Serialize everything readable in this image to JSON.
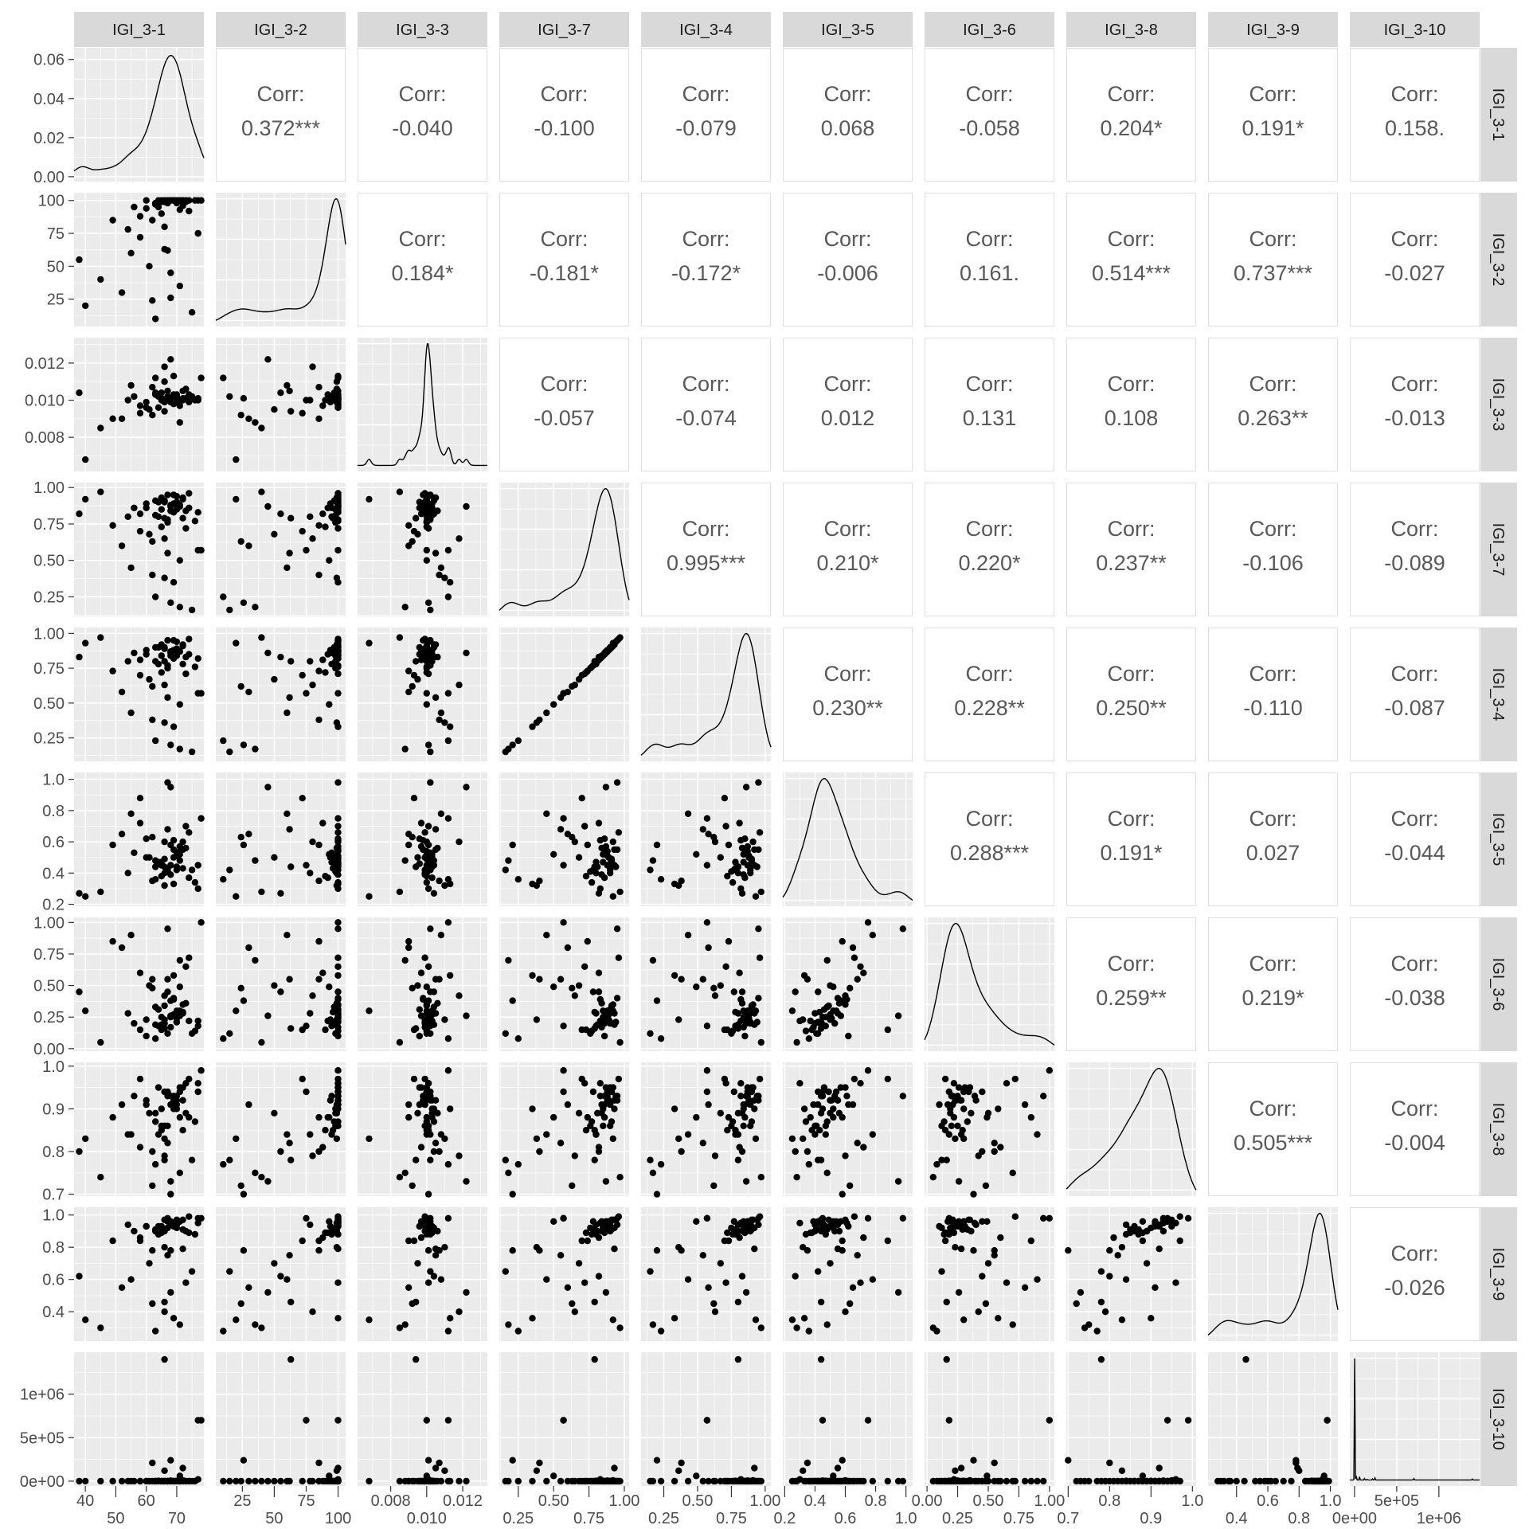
{
  "chart_data": {
    "type": "scatter-matrix",
    "variables": [
      "IGI_3-1",
      "IGI_3-2",
      "IGI_3-3",
      "IGI_3-7",
      "IGI_3-4",
      "IGI_3-5",
      "IGI_3-6",
      "IGI_3-8",
      "IGI_3-9",
      "IGI_3-10"
    ],
    "lower": "scatter",
    "diagonal": "density",
    "upper": "correlation",
    "corr_prefix": "Corr:",
    "grid": true,
    "ranges": [
      [
        36.3,
        78.9
      ],
      [
        4.2,
        105.9
      ],
      [
        0.00616,
        0.01337
      ],
      [
        0.116,
        1.034
      ],
      [
        0.082,
        1.042
      ],
      [
        0.1875,
        1.044
      ],
      [
        -0.02,
        1.04
      ],
      [
        0.6955,
        1.009
      ],
      [
        0.218,
        1.048
      ],
      [
        -56000,
        1483000
      ]
    ],
    "ticks": [
      {
        "values": [
          40,
          50,
          60,
          70
        ],
        "labels": [
          "40",
          "50",
          "60",
          "70"
        ]
      },
      {
        "values": [
          25,
          50,
          75,
          100
        ],
        "labels": [
          "25",
          "50",
          "75",
          "100"
        ]
      },
      {
        "values": [
          0.008,
          0.01,
          0.012
        ],
        "labels": [
          "0.008",
          "0.010",
          "0.012"
        ]
      },
      {
        "values": [
          0.25,
          0.5,
          0.75,
          1.0
        ],
        "labels": [
          "0.25",
          "0.50",
          "0.75",
          "1.00"
        ]
      },
      {
        "values": [
          0.25,
          0.5,
          0.75,
          1.0
        ],
        "labels": [
          "0.25",
          "0.50",
          "0.75",
          "1.00"
        ]
      },
      {
        "values": [
          0.2,
          0.4,
          0.6,
          0.8,
          1.0
        ],
        "labels": [
          "0.2",
          "0.4",
          "0.6",
          "0.8",
          "1.0"
        ]
      },
      {
        "values": [
          0,
          0.25,
          0.5,
          0.75,
          1.0
        ],
        "labels": [
          "0.00",
          "0.25",
          "0.50",
          "0.75",
          "1.00"
        ]
      },
      {
        "values": [
          0.7,
          0.8,
          0.9,
          1.0
        ],
        "labels": [
          "0.7",
          "0.8",
          "0.9",
          "1.0"
        ]
      },
      {
        "values": [
          0.4,
          0.6,
          0.8,
          1.0
        ],
        "labels": [
          "0.4",
          "0.6",
          "0.8",
          "1.0"
        ]
      },
      {
        "values": [
          0,
          500000,
          1000000
        ],
        "labels": [
          "0e+00",
          "5e+05",
          "1e+06"
        ]
      }
    ],
    "density_axis_first": {
      "ylim": [
        -0.0025,
        0.066
      ],
      "values": [
        0,
        0.02,
        0.04,
        0.06
      ],
      "labels": [
        "0.00",
        "0.02",
        "0.04",
        "0.06"
      ]
    },
    "correlations": [
      [
        "0.372***",
        "-0.040",
        "-0.100",
        "-0.079",
        "0.068",
        "-0.058",
        "0.204*",
        "0.191*",
        "0.158."
      ],
      [
        "0.184*",
        "-0.181*",
        "-0.172*",
        "-0.006",
        "0.161.",
        "0.514***",
        "0.737***",
        "-0.027"
      ],
      [
        "-0.057",
        "-0.074",
        "0.012",
        "0.131",
        "0.108",
        "0.263**",
        "-0.013"
      ],
      [
        "0.995***",
        "0.210*",
        "0.220*",
        "0.237**",
        "-0.106",
        "-0.089"
      ],
      [
        "0.230**",
        "0.228**",
        "0.250**",
        "-0.110",
        "-0.087"
      ],
      [
        "0.288***",
        "0.191*",
        "0.027",
        "-0.044"
      ],
      [
        "0.259**",
        "0.219*",
        "-0.038"
      ],
      [
        "0.505***",
        "-0.004"
      ],
      [
        "-0.026"
      ]
    ],
    "observations": [
      [
        68,
        100,
        0.0101,
        0.88,
        0.87,
        0.45,
        0.25,
        0.93,
        0.95,
        5000
      ],
      [
        70,
        98,
        0.0103,
        0.85,
        0.84,
        0.52,
        0.3,
        0.9,
        0.92,
        2000
      ],
      [
        66,
        99,
        0.0099,
        0.9,
        0.89,
        0.4,
        0.2,
        0.86,
        0.9,
        1000
      ],
      [
        72,
        100,
        0.01,
        0.92,
        0.91,
        0.6,
        0.35,
        0.95,
        0.97,
        8000
      ],
      [
        64,
        95,
        0.0102,
        0.8,
        0.78,
        0.47,
        0.18,
        0.84,
        0.88,
        3000
      ],
      [
        69,
        100,
        0.0098,
        0.95,
        0.95,
        0.55,
        0.4,
        0.92,
        0.94,
        0
      ],
      [
        66,
        63,
        0.0094,
        0.79,
        0.8,
        0.44,
        0.16,
        0.78,
        0.46,
        1400000
      ],
      [
        78,
        100,
        0.0112,
        0.57,
        0.57,
        0.75,
        1.0,
        0.99,
        0.98,
        700000
      ],
      [
        77,
        75,
        0.01,
        0.57,
        0.57,
        0.45,
        0.18,
        0.94,
        0.98,
        700000
      ],
      [
        62,
        85,
        0.0107,
        0.4,
        0.38,
        0.35,
        0.55,
        0.8,
        0.78,
        210000
      ],
      [
        68,
        26,
        0.0101,
        0.21,
        0.2,
        0.58,
        0.38,
        0.7,
        0.78,
        240000
      ],
      [
        72,
        100,
        0.0105,
        0.93,
        0.92,
        0.55,
        0.28,
        0.92,
        0.79,
        150000
      ],
      [
        66,
        99,
        0.011,
        0.38,
        0.36,
        0.32,
        0.23,
        0.83,
        0.8,
        120000
      ],
      [
        71,
        93,
        0.01,
        0.5,
        0.49,
        0.52,
        0.49,
        0.88,
        0.96,
        60000
      ],
      [
        77,
        100,
        0.0101,
        0.83,
        0.82,
        0.3,
        0.22,
        0.96,
        0.95,
        20000
      ],
      [
        60,
        100,
        0.0096,
        0.86,
        0.85,
        0.62,
        0.1,
        0.91,
        0.93,
        0
      ],
      [
        63,
        97,
        0.0104,
        0.91,
        0.9,
        0.48,
        0.33,
        0.87,
        0.91,
        0
      ],
      [
        67,
        100,
        0.0102,
        0.78,
        0.77,
        0.42,
        0.45,
        0.94,
        0.96,
        0
      ],
      [
        74,
        100,
        0.0099,
        0.96,
        0.96,
        0.66,
        0.72,
        0.97,
        0.99,
        0
      ],
      [
        65,
        90,
        0.01,
        0.73,
        0.72,
        0.38,
        0.15,
        0.85,
        0.89,
        0
      ],
      [
        69,
        100,
        0.0103,
        0.89,
        0.88,
        0.5,
        0.27,
        0.92,
        0.93,
        0
      ],
      [
        58,
        88,
        0.0097,
        0.82,
        0.81,
        0.72,
        0.6,
        0.81,
        0.86,
        0
      ],
      [
        70,
        100,
        0.0101,
        0.94,
        0.94,
        0.44,
        0.21,
        0.93,
        0.97,
        0
      ],
      [
        73,
        99,
        0.0106,
        0.84,
        0.83,
        0.56,
        0.36,
        0.89,
        0.9,
        0
      ],
      [
        67,
        98,
        0.01,
        0.76,
        0.75,
        0.41,
        0.12,
        0.86,
        0.92,
        0
      ],
      [
        45,
        40,
        0.0085,
        0.97,
        0.97,
        0.28,
        0.05,
        0.74,
        0.3,
        0
      ],
      [
        40,
        20,
        0.0068,
        0.92,
        0.93,
        0.25,
        0.3,
        0.83,
        0.35,
        0
      ],
      [
        52,
        30,
        0.009,
        0.6,
        0.58,
        0.65,
        0.8,
        0.91,
        0.55,
        0
      ],
      [
        55,
        60,
        0.0108,
        0.45,
        0.43,
        0.78,
        0.9,
        0.84,
        0.6,
        0
      ],
      [
        61,
        50,
        0.0095,
        0.68,
        0.67,
        0.5,
        0.5,
        0.89,
        0.7,
        0
      ],
      [
        63,
        10,
        0.0112,
        0.25,
        0.23,
        0.36,
        0.08,
        0.77,
        0.28,
        0
      ],
      [
        58,
        72,
        0.0093,
        0.7,
        0.7,
        0.88,
        0.15,
        0.97,
        0.84,
        0
      ],
      [
        66,
        80,
        0.0118,
        0.65,
        0.63,
        0.6,
        0.42,
        0.79,
        0.4,
        0
      ],
      [
        68,
        45,
        0.0122,
        0.87,
        0.86,
        0.95,
        0.26,
        0.73,
        0.52,
        0
      ],
      [
        71,
        35,
        0.0088,
        0.18,
        0.17,
        0.48,
        0.7,
        0.75,
        0.32,
        0
      ],
      [
        75,
        15,
        0.0102,
        0.16,
        0.15,
        0.42,
        0.12,
        0.78,
        0.65,
        0
      ],
      [
        38,
        55,
        0.0104,
        0.82,
        0.83,
        0.27,
        0.45,
        0.8,
        0.62,
        0
      ],
      [
        49,
        85,
        0.009,
        0.74,
        0.73,
        0.58,
        0.85,
        0.88,
        0.84,
        0
      ],
      [
        56,
        95,
        0.0102,
        0.86,
        0.86,
        0.53,
        0.2,
        0.93,
        0.9,
        0
      ],
      [
        64,
        100,
        0.0096,
        0.9,
        0.9,
        0.46,
        0.31,
        0.95,
        0.93,
        0
      ],
      [
        68,
        100,
        0.0099,
        0.84,
        0.84,
        0.39,
        0.17,
        0.91,
        0.96,
        0
      ],
      [
        70,
        100,
        0.0102,
        0.88,
        0.88,
        0.51,
        0.24,
        0.92,
        0.94,
        0
      ],
      [
        72,
        96,
        0.0101,
        0.79,
        0.78,
        0.43,
        0.29,
        0.85,
        0.91,
        0
      ],
      [
        66,
        100,
        0.01,
        0.91,
        0.9,
        0.49,
        0.34,
        0.94,
        0.97,
        0
      ],
      [
        74,
        92,
        0.0103,
        0.86,
        0.85,
        0.37,
        0.22,
        0.88,
        0.89,
        0
      ],
      [
        69,
        100,
        0.0098,
        0.83,
        0.82,
        0.61,
        0.39,
        0.93,
        0.95,
        0
      ],
      [
        65,
        99,
        0.0104,
        0.93,
        0.92,
        0.45,
        0.19,
        0.9,
        0.92,
        0
      ],
      [
        71,
        100,
        0.0097,
        0.87,
        0.87,
        0.57,
        0.26,
        0.95,
        0.96,
        0
      ],
      [
        76,
        100,
        0.01,
        0.77,
        0.76,
        0.34,
        0.14,
        0.87,
        0.88,
        0
      ],
      [
        60,
        94,
        0.0099,
        0.89,
        0.88,
        0.5,
        0.23,
        0.92,
        0.93,
        0
      ],
      [
        67,
        62,
        0.0105,
        0.55,
        0.54,
        0.68,
        0.55,
        0.82,
        0.75,
        0
      ],
      [
        73,
        100,
        0.0101,
        0.72,
        0.71,
        0.7,
        0.65,
        0.96,
        0.58,
        0
      ],
      [
        62,
        24,
        0.0092,
        0.63,
        0.62,
        0.63,
        0.48,
        0.72,
        0.45,
        0
      ],
      [
        69,
        100,
        0.0113,
        0.35,
        0.33,
        0.33,
        0.58,
        0.9,
        0.36,
        0
      ],
      [
        54,
        78,
        0.01,
        0.8,
        0.8,
        0.4,
        0.28,
        0.84,
        0.94,
        0
      ],
      [
        67,
        100,
        0.0102,
        0.95,
        0.95,
        0.98,
        0.95,
        0.93,
        0.98,
        0
      ],
      [
        70,
        99,
        0.0099,
        0.9,
        0.89,
        0.42,
        0.21,
        0.91,
        0.95,
        0
      ],
      [
        65,
        100,
        0.0101,
        0.85,
        0.84,
        0.47,
        0.25,
        0.86,
        0.93,
        0
      ],
      [
        71,
        100,
        0.01,
        0.88,
        0.87,
        0.54,
        0.3,
        0.94,
        0.96,
        0
      ],
      [
        63,
        98,
        0.0103,
        0.81,
        0.8,
        0.44,
        0.19,
        0.89,
        0.9,
        0
      ]
    ],
    "colors": {
      "panel": "#EBEBEB",
      "grid": "#FFFFFF",
      "strip": "#D9D9D9",
      "point": "#000000",
      "corr_text": "#595959",
      "axis_text": "#4D4D4D"
    }
  }
}
